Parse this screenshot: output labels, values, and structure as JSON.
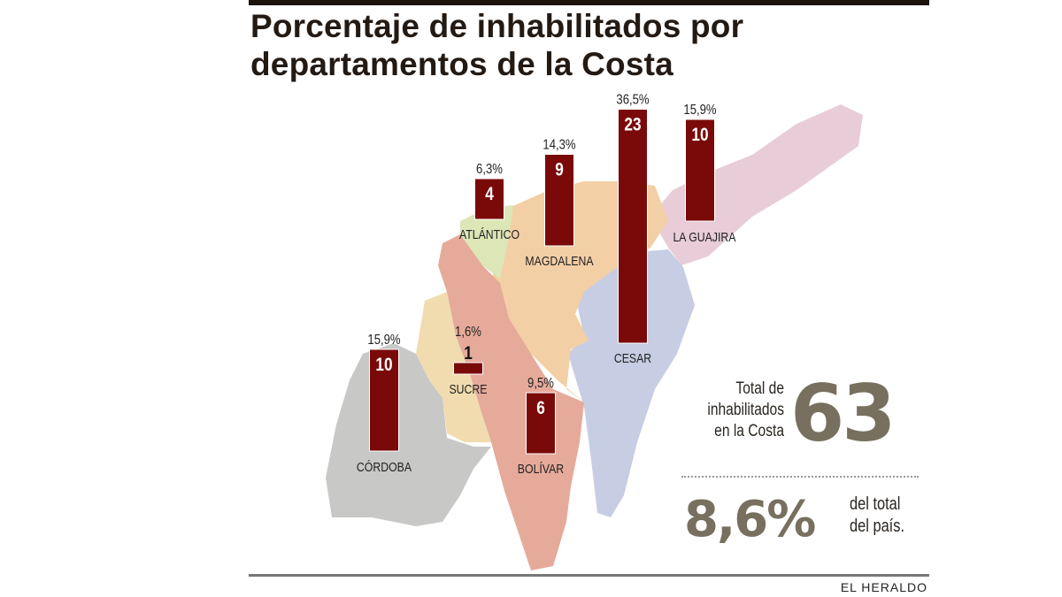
{
  "title_line1": "Porcentaje de inhabilitados por",
  "title_line2": "departamentos de la Costa",
  "chart_data": {
    "type": "bar",
    "title": "Porcentaje de inhabilitados por departamentos de la Costa",
    "categories": [
      "ATLÁNTICO",
      "MAGDALENA",
      "CESAR",
      "LA GUAJIRA",
      "SUCRE",
      "BOLÍVAR",
      "CÓRDOBA"
    ],
    "values": [
      4,
      9,
      23,
      10,
      1,
      6,
      10
    ],
    "percent_labels": [
      "6,3%",
      "14,3%",
      "36,5%",
      "15,9%",
      "1,6%",
      "9,5%",
      "15,9%"
    ],
    "bar_color": "#7a0a0a"
  },
  "total": {
    "label_lines": [
      "Total de",
      "inhabilitados",
      "en la Costa"
    ],
    "value": "63"
  },
  "share": {
    "value": "8,6%",
    "label_lines": [
      "del total",
      "del país."
    ]
  },
  "brand": "EL HERALDO"
}
